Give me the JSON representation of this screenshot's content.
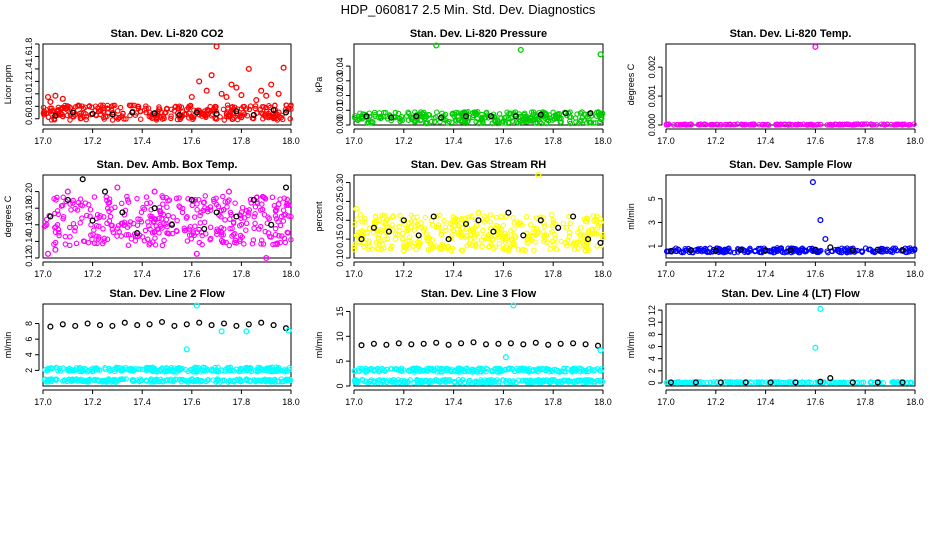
{
  "page_title": "HDP_060817  2.5 Min. Std. Dev. Diagnostics",
  "colors": {
    "black": "#000000",
    "red": "#ff0000",
    "green": "#00cc00",
    "magenta": "#ff00ff",
    "yellow": "#ffff00",
    "blue": "#0000ff",
    "cyan": "#00ffff"
  },
  "chart_data": [
    {
      "type": "scatter",
      "title": "Stan. Dev. Li-820 CO2",
      "ylabel": "Licor ppm",
      "xlim": [
        17.0,
        18.0
      ],
      "ylim": [
        0.5,
        1.8
      ],
      "xticks": [
        17.0,
        17.2,
        17.4,
        17.6,
        17.8,
        18.0
      ],
      "xtick_labels": [
        "17.0",
        "17.2",
        "17.4",
        "17.6",
        "17.8",
        "18.0"
      ],
      "yticks": [
        0.6,
        0.8,
        1.0,
        1.2,
        1.4,
        1.6,
        1.8
      ],
      "ytick_labels": [
        "0.6",
        "0.8",
        "1.0",
        "1.2",
        "1.4",
        "1.6",
        "1.8"
      ],
      "series": [
        {
          "name": "CO2 std dev (red)",
          "color": "red",
          "x": [
            17.02,
            17.03,
            17.05,
            17.08,
            17.6,
            17.63,
            17.66,
            17.68,
            17.7,
            17.72,
            17.74,
            17.76,
            17.78,
            17.8,
            17.83,
            17.86,
            17.88,
            17.9,
            17.92,
            17.95,
            17.97
          ],
          "y": [
            0.95,
            0.87,
            0.97,
            0.92,
            0.95,
            1.2,
            1.05,
            1.3,
            1.76,
            1.0,
            0.95,
            1.15,
            1.1,
            0.98,
            1.4,
            0.9,
            1.05,
            0.97,
            1.15,
            1.0,
            1.42
          ]
        },
        {
          "name": "CO2 std dev (black)",
          "color": "black",
          "x": [
            17.05,
            17.12,
            17.2,
            17.28,
            17.36,
            17.45,
            17.55,
            17.62,
            17.7,
            17.78,
            17.85,
            17.93,
            17.98
          ],
          "y": [
            0.65,
            0.7,
            0.68,
            0.67,
            0.7,
            0.69,
            0.66,
            0.7,
            0.68,
            0.72,
            0.66,
            0.74,
            0.7
          ]
        }
      ]
    },
    {
      "type": "scatter",
      "title": "Stan. Dev. Li-820 Pressure",
      "ylabel": "kPa",
      "xlim": [
        17.0,
        18.0
      ],
      "ylim": [
        0.0,
        0.055
      ],
      "xticks": [
        17.0,
        17.2,
        17.4,
        17.6,
        17.8,
        18.0
      ],
      "xtick_labels": [
        "17.0",
        "17.2",
        "17.4",
        "17.6",
        "17.8",
        "18.0"
      ],
      "yticks": [
        0.0,
        0.01,
        0.02,
        0.03,
        0.04
      ],
      "ytick_labels": [
        "0.00",
        "0.01",
        "0.02",
        "0.03",
        "0.04"
      ],
      "series": [
        {
          "name": "Pressure std dev (green)",
          "color": "green",
          "x": [
            17.33,
            17.67,
            17.99
          ],
          "y": [
            0.054,
            0.051,
            0.048
          ]
        },
        {
          "name": "Pressure std dev (black)",
          "color": "black",
          "x": [
            17.05,
            17.15,
            17.25,
            17.35,
            17.45,
            17.55,
            17.65,
            17.75,
            17.85,
            17.95
          ],
          "y": [
            0.006,
            0.005,
            0.006,
            0.005,
            0.006,
            0.006,
            0.006,
            0.007,
            0.008,
            0.008
          ]
        }
      ]
    },
    {
      "type": "scatter",
      "title": "Stan. Dev. Li-820 Temp.",
      "ylabel": "degrees C",
      "xlim": [
        17.0,
        18.0
      ],
      "ylim": [
        0.0,
        0.0028
      ],
      "xticks": [
        17.0,
        17.2,
        17.4,
        17.6,
        17.8,
        18.0
      ],
      "xtick_labels": [
        "17.0",
        "17.2",
        "17.4",
        "17.6",
        "17.8",
        "18.0"
      ],
      "yticks": [
        0.0,
        0.001,
        0.002
      ],
      "ytick_labels": [
        "0.000",
        "0.001",
        "0.002"
      ],
      "series": [
        {
          "name": "Temp std dev (magenta)",
          "color": "magenta",
          "x": [
            17.6
          ],
          "y": [
            0.0027
          ]
        }
      ]
    },
    {
      "type": "scatter",
      "title": "Stan. Dev. Amb. Box Temp.",
      "ylabel": "degrees C",
      "xlim": [
        17.0,
        18.0
      ],
      "ylim": [
        0.12,
        0.22
      ],
      "xticks": [
        17.0,
        17.2,
        17.4,
        17.6,
        17.8,
        18.0
      ],
      "xtick_labels": [
        "17.0",
        "17.2",
        "17.4",
        "17.6",
        "17.8",
        "18.0"
      ],
      "yticks": [
        0.12,
        0.14,
        0.16,
        0.18,
        0.2
      ],
      "ytick_labels": [
        "0.12",
        "0.14",
        "0.16",
        "0.18",
        "0.20"
      ],
      "series": [
        {
          "name": "Box temp std dev (magenta)",
          "color": "magenta",
          "x": [
            17.02,
            17.05,
            17.1,
            17.3,
            17.45,
            17.62,
            17.75,
            17.9,
            17.95
          ],
          "y": [
            0.125,
            0.13,
            0.2,
            0.205,
            0.2,
            0.125,
            0.2,
            0.12,
            0.185
          ]
        },
        {
          "name": "Box temp std dev (black)",
          "color": "black",
          "x": [
            17.03,
            17.1,
            17.16,
            17.2,
            17.25,
            17.32,
            17.38,
            17.45,
            17.52,
            17.6,
            17.65,
            17.7,
            17.78,
            17.85,
            17.92,
            17.98
          ],
          "y": [
            0.17,
            0.19,
            0.215,
            0.165,
            0.2,
            0.175,
            0.15,
            0.18,
            0.16,
            0.19,
            0.155,
            0.175,
            0.17,
            0.19,
            0.16,
            0.205
          ]
        }
      ]
    },
    {
      "type": "scatter",
      "title": "Stan. Dev. Gas Stream RH",
      "ylabel": "percent",
      "xlim": [
        17.0,
        18.0
      ],
      "ylim": [
        0.1,
        0.32
      ],
      "xticks": [
        17.0,
        17.2,
        17.4,
        17.6,
        17.8,
        18.0
      ],
      "xtick_labels": [
        "17.0",
        "17.2",
        "17.4",
        "17.6",
        "17.8",
        "18.0"
      ],
      "yticks": [
        0.1,
        0.15,
        0.2,
        0.25,
        0.3
      ],
      "ytick_labels": [
        "0.10",
        "0.15",
        "0.20",
        "0.25",
        "0.30"
      ],
      "series": [
        {
          "name": "RH std dev (yellow)",
          "color": "yellow",
          "x": [
            17.01,
            17.04,
            17.1,
            17.2,
            17.35,
            17.5,
            17.62,
            17.7,
            17.74,
            17.85,
            17.93
          ],
          "y": [
            0.23,
            0.14,
            0.2,
            0.12,
            0.13,
            0.22,
            0.12,
            0.15,
            0.32,
            0.14,
            0.12
          ]
        },
        {
          "name": "RH std dev (black)",
          "color": "black",
          "x": [
            17.03,
            17.08,
            17.14,
            17.2,
            17.26,
            17.32,
            17.38,
            17.45,
            17.5,
            17.56,
            17.62,
            17.68,
            17.75,
            17.82,
            17.88,
            17.94,
            17.99
          ],
          "y": [
            0.15,
            0.18,
            0.17,
            0.2,
            0.16,
            0.21,
            0.15,
            0.19,
            0.2,
            0.17,
            0.22,
            0.16,
            0.2,
            0.18,
            0.21,
            0.15,
            0.14
          ]
        }
      ]
    },
    {
      "type": "scatter",
      "title": "Stan. Dev. Sample Flow",
      "ylabel": "ml/min",
      "xlim": [
        17.0,
        18.0
      ],
      "ylim": [
        0.0,
        7.0
      ],
      "xticks": [
        17.0,
        17.2,
        17.4,
        17.6,
        17.8,
        18.0
      ],
      "xtick_labels": [
        "17.0",
        "17.2",
        "17.4",
        "17.6",
        "17.8",
        "18.0"
      ],
      "yticks": [
        1,
        3,
        5
      ],
      "ytick_labels": [
        "1",
        "3",
        "5"
      ],
      "series": [
        {
          "name": "Sample flow std dev (blue)",
          "color": "blue",
          "x": [
            17.59,
            17.62,
            17.64
          ],
          "y": [
            6.4,
            3.2,
            1.6
          ]
        },
        {
          "name": "Sample flow std dev (black)",
          "color": "black",
          "x": [
            17.02,
            17.1,
            17.2,
            17.3,
            17.4,
            17.5,
            17.6,
            17.66,
            17.75,
            17.85,
            17.95
          ],
          "y": [
            0.6,
            0.65,
            0.62,
            0.68,
            0.64,
            0.66,
            0.7,
            0.9,
            0.65,
            0.7,
            0.68
          ]
        }
      ]
    },
    {
      "type": "scatter",
      "title": "Stan. Dev. Line 2 Flow",
      "ylabel": "ml/min",
      "xlim": [
        17.0,
        18.0
      ],
      "ylim": [
        0.0,
        10.5
      ],
      "xticks": [
        17.0,
        17.2,
        17.4,
        17.6,
        17.8,
        18.0
      ],
      "xtick_labels": [
        "17.0",
        "17.2",
        "17.4",
        "17.6",
        "17.8",
        "18.0"
      ],
      "yticks": [
        2,
        4,
        6,
        8
      ],
      "ytick_labels": [
        "2",
        "4",
        "6",
        "8"
      ],
      "series": [
        {
          "name": "Line 2 flow (black)",
          "color": "black",
          "x": [
            17.03,
            17.08,
            17.13,
            17.18,
            17.23,
            17.28,
            17.33,
            17.38,
            17.43,
            17.48,
            17.53,
            17.58,
            17.63,
            17.68,
            17.73,
            17.78,
            17.83,
            17.88,
            17.93,
            17.98
          ],
          "y": [
            7.6,
            7.9,
            7.7,
            8.0,
            7.8,
            7.7,
            8.1,
            7.8,
            7.9,
            8.2,
            7.7,
            7.9,
            8.1,
            7.8,
            8.0,
            7.7,
            7.9,
            8.1,
            7.8,
            7.4
          ]
        },
        {
          "name": "Line 2 flow (cyan, upper)",
          "color": "cyan",
          "x": [
            17.58,
            17.62,
            17.72,
            17.82,
            17.99
          ],
          "y": [
            4.7,
            10.3,
            7.0,
            7.0,
            7.1
          ]
        },
        {
          "name": "Line 2 flow (cyan, baseline)",
          "color": "cyan",
          "x": [
            17.02,
            17.12,
            17.22,
            17.32,
            17.42,
            17.52,
            17.62,
            17.72,
            17.82,
            17.92
          ],
          "y": [
            2.1,
            2.0,
            2.1,
            2.0,
            2.1,
            2.0,
            2.2,
            2.0,
            2.1,
            2.0
          ]
        }
      ]
    },
    {
      "type": "scatter",
      "title": "Stan. Dev. Line 3 Flow",
      "ylabel": "ml/min",
      "xlim": [
        17.0,
        18.0
      ],
      "ylim": [
        0.0,
        16.5
      ],
      "xticks": [
        17.0,
        17.2,
        17.4,
        17.6,
        17.8,
        18.0
      ],
      "xtick_labels": [
        "17.0",
        "17.2",
        "17.4",
        "17.6",
        "17.8",
        "18.0"
      ],
      "yticks": [
        0,
        5,
        10,
        15
      ],
      "ytick_labels": [
        "0",
        "5",
        "10",
        "15"
      ],
      "series": [
        {
          "name": "Line 3 flow (black)",
          "color": "black",
          "x": [
            17.03,
            17.08,
            17.13,
            17.18,
            17.23,
            17.28,
            17.33,
            17.38,
            17.43,
            17.48,
            17.53,
            17.58,
            17.63,
            17.68,
            17.73,
            17.78,
            17.83,
            17.88,
            17.93,
            17.98
          ],
          "y": [
            8.2,
            8.5,
            8.3,
            8.6,
            8.4,
            8.5,
            8.7,
            8.3,
            8.6,
            8.8,
            8.4,
            8.5,
            8.6,
            8.4,
            8.7,
            8.3,
            8.5,
            8.6,
            8.4,
            8.1
          ]
        },
        {
          "name": "Line 3 flow (cyan, outliers)",
          "color": "cyan",
          "x": [
            17.61,
            17.64,
            17.99
          ],
          "y": [
            5.8,
            16.2,
            7.2
          ]
        },
        {
          "name": "Line 3 flow (cyan, baseline)",
          "color": "cyan",
          "x": [
            17.02,
            17.12,
            17.22,
            17.32,
            17.42,
            17.52,
            17.62,
            17.72,
            17.82,
            17.92
          ],
          "y": [
            3.0,
            3.2,
            3.1,
            3.3,
            3.0,
            3.2,
            3.4,
            3.1,
            3.0,
            3.1
          ]
        }
      ]
    },
    {
      "type": "scatter",
      "title": "Stan. Dev. Line 4 (LT) Flow",
      "ylabel": "ml/min",
      "xlim": [
        17.0,
        18.0
      ],
      "ylim": [
        -0.5,
        13.0
      ],
      "xticks": [
        17.0,
        17.2,
        17.4,
        17.6,
        17.8,
        18.0
      ],
      "xtick_labels": [
        "17.0",
        "17.2",
        "17.4",
        "17.6",
        "17.8",
        "18.0"
      ],
      "yticks": [
        0,
        2,
        4,
        6,
        8,
        10,
        12
      ],
      "ytick_labels": [
        "0",
        "2",
        "4",
        "6",
        "8",
        "10",
        "12"
      ],
      "series": [
        {
          "name": "Line 4 flow (cyan)",
          "color": "cyan",
          "x": [
            17.6,
            17.62
          ],
          "y": [
            5.8,
            12.2
          ]
        },
        {
          "name": "Line 4 flow (black)",
          "color": "black",
          "x": [
            17.02,
            17.12,
            17.22,
            17.32,
            17.42,
            17.52,
            17.62,
            17.66,
            17.75,
            17.85,
            17.95
          ],
          "y": [
            0.1,
            0.1,
            0.1,
            0.1,
            0.1,
            0.1,
            0.2,
            0.8,
            0.1,
            0.1,
            0.1
          ]
        }
      ]
    }
  ]
}
